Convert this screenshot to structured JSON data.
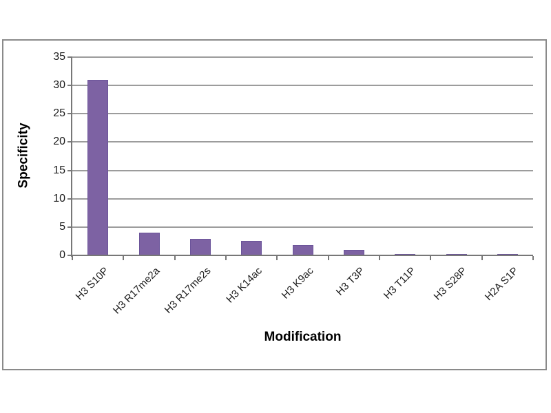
{
  "chart_data": {
    "type": "bar",
    "title": "",
    "ylabel": "Specificity",
    "xlabel": "Modification",
    "categories": [
      "H3 S10P",
      "H3 R17me2a",
      "H3 R17me2s",
      "H3 K14ac",
      "H3 K9ac",
      "H3 T3P",
      "H3 T11P",
      "H3 S28P",
      "H2A S1P"
    ],
    "values": [
      31,
      4,
      2.9,
      2.6,
      1.8,
      1,
      0.3,
      0.3,
      0.3
    ],
    "ylim": [
      0,
      35
    ],
    "yticks": [
      0,
      5,
      10,
      15,
      20,
      25,
      30,
      35
    ],
    "grid": true,
    "legend": false,
    "colors": {
      "bar": "#7D62A3",
      "bar_border": "#6B549A",
      "gridline": "#9C9C9C",
      "axis": "#777777",
      "panel_border": "#8A8A8A",
      "text": "#1C1C1C",
      "background": "#FFFFFF"
    }
  }
}
